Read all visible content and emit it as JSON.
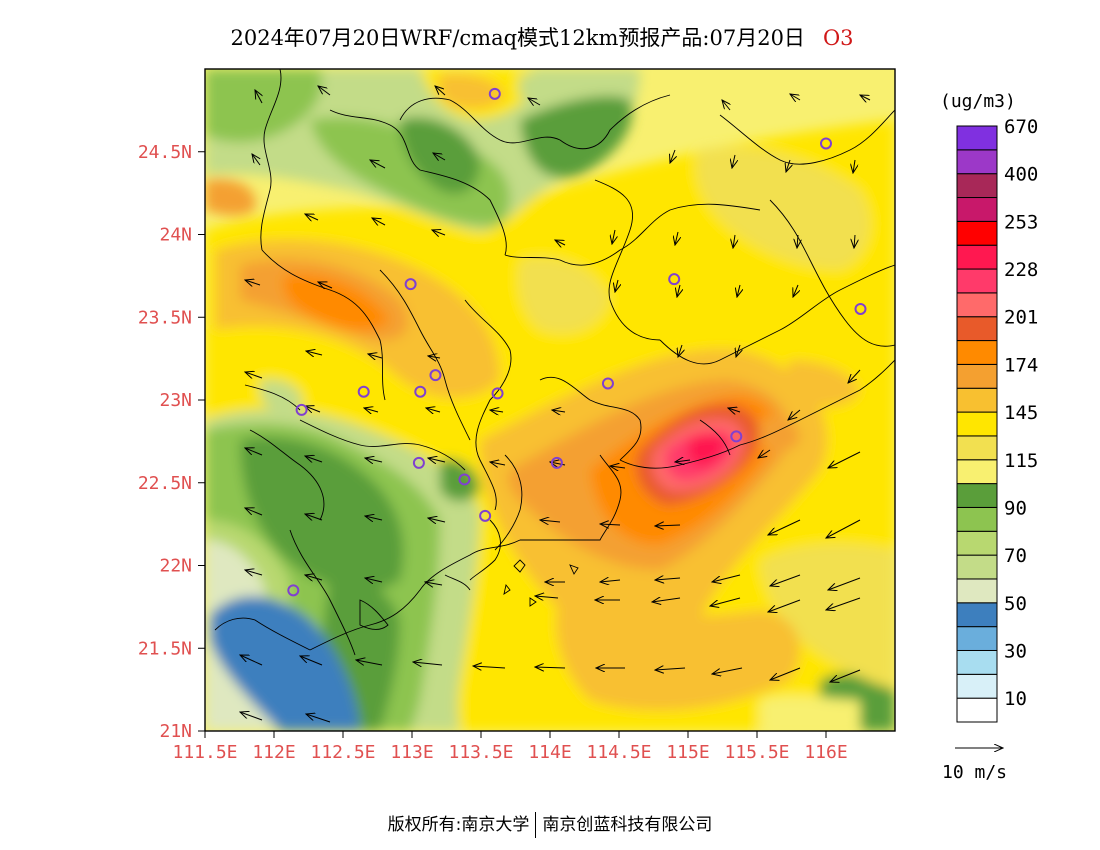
{
  "title": {
    "main": "2024年07月20日WRF/cmaq模式12km预报产品:07月20日",
    "species": "O3"
  },
  "footer": {
    "left": "版权所有:南京大学",
    "right": "南京创蓝科技有限公司"
  },
  "axes": {
    "lat_labels": [
      "24.5N",
      "24N",
      "23.5N",
      "23N",
      "22.5N",
      "22N",
      "21.5N",
      "21N"
    ],
    "lon_labels": [
      "111.5E",
      "112E",
      "112.5E",
      "113E",
      "113.5E",
      "114E",
      "114.5E",
      "115E",
      "115.5E",
      "116E"
    ]
  },
  "colorbar": {
    "unit": "(ug/m3)",
    "colors": [
      "#ffffff",
      "#d8f0f8",
      "#a8ddf0",
      "#6aaedc",
      "#3d7fbe",
      "#dfe8c0",
      "#c3dc88",
      "#b8d870",
      "#8dc450",
      "#5a9e3a",
      "#f8f070",
      "#f2e050",
      "#ffe600",
      "#f8c030",
      "#f4a030",
      "#ff8a00",
      "#e85a2a",
      "#ff6a6a",
      "#ff3a6a",
      "#ff1850",
      "#ff0000",
      "#c8186a",
      "#a82858",
      "#9c38c8",
      "#8030e0"
    ],
    "labels": [
      "10",
      "30",
      "50",
      "70",
      "90",
      "115",
      "145",
      "174",
      "201",
      "228",
      "253",
      "400",
      "670"
    ]
  },
  "wind_legend": {
    "label": "10 m/s"
  },
  "station_color": "#8040d0",
  "stations": [
    {
      "lon": 113.6,
      "lat": 24.85
    },
    {
      "lon": 116.0,
      "lat": 24.55
    },
    {
      "lon": 114.9,
      "lat": 23.73
    },
    {
      "lon": 112.99,
      "lat": 23.7
    },
    {
      "lon": 116.25,
      "lat": 23.55
    },
    {
      "lon": 113.17,
      "lat": 23.15
    },
    {
      "lon": 112.65,
      "lat": 23.05
    },
    {
      "lon": 113.06,
      "lat": 23.05
    },
    {
      "lon": 113.62,
      "lat": 23.04
    },
    {
      "lon": 114.42,
      "lat": 23.1
    },
    {
      "lon": 112.2,
      "lat": 22.94
    },
    {
      "lon": 115.35,
      "lat": 22.78
    },
    {
      "lon": 113.05,
      "lat": 22.62
    },
    {
      "lon": 113.38,
      "lat": 22.52
    },
    {
      "lon": 114.05,
      "lat": 22.62
    },
    {
      "lon": 113.53,
      "lat": 22.3
    },
    {
      "lon": 112.14,
      "lat": 21.85
    }
  ]
}
